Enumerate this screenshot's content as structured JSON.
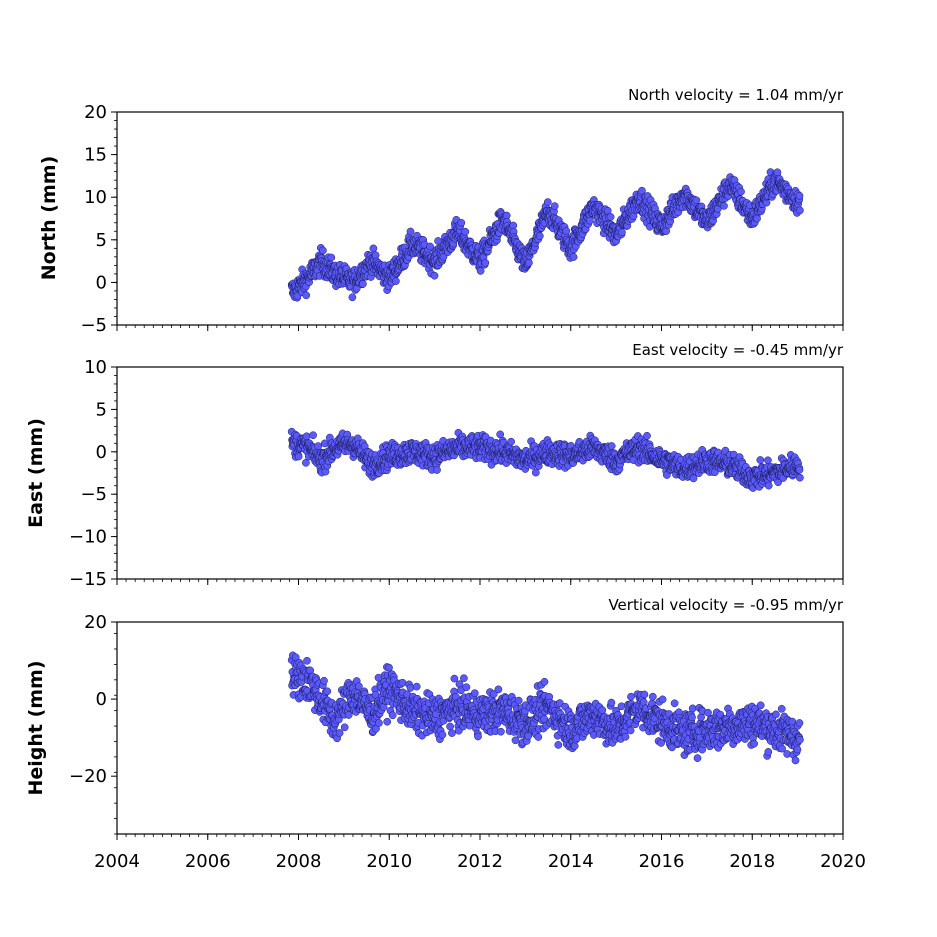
{
  "colors": {
    "marker_fill": "#5a5aff",
    "marker_edge": "#1a1a55",
    "axes": "#000000"
  },
  "shared_x": {
    "xlim": [
      2004,
      2020
    ],
    "ticks": [
      2004,
      2006,
      2008,
      2010,
      2012,
      2014,
      2016,
      2018,
      2020
    ],
    "minor_step": 0.2,
    "data_start": 2007.85,
    "data_end": 2019.05
  },
  "chart_data": [
    {
      "type": "scatter",
      "title": "North velocity = 1.04 mm/yr",
      "ylabel": "North (mm)",
      "ylim": [
        -5,
        20
      ],
      "yticks": [
        -5,
        0,
        5,
        10,
        15,
        20
      ],
      "grid": false,
      "series": [
        {
          "x": [
            2007.9,
            2008.2,
            2008.5,
            2008.8,
            2009.2,
            2009.6,
            2010.0,
            2010.5,
            2011.0,
            2011.5,
            2012.0,
            2012.5,
            2013.0,
            2013.5,
            2014.0,
            2014.5,
            2015.0,
            2015.5,
            2016.0,
            2016.5,
            2017.0,
            2017.5,
            2018.0,
            2018.5,
            2019.0
          ],
          "y": [
            -1.0,
            0.5,
            2.5,
            1.0,
            0.0,
            2.5,
            0.5,
            4.5,
            2.5,
            6.0,
            2.5,
            7.5,
            2.0,
            8.5,
            4.0,
            9.0,
            5.5,
            10.0,
            6.5,
            10.5,
            7.0,
            11.5,
            7.5,
            12.0,
            9.5
          ]
        }
      ]
    },
    {
      "type": "scatter",
      "title": "East velocity = -0.45 mm/yr",
      "ylabel": "East (mm)",
      "ylim": [
        -15,
        10
      ],
      "yticks": [
        -15,
        -10,
        -5,
        0,
        5,
        10
      ],
      "grid": false,
      "series": [
        {
          "x": [
            2007.9,
            2008.2,
            2008.5,
            2008.8,
            2009.2,
            2009.6,
            2010.0,
            2010.5,
            2011.0,
            2011.5,
            2012.0,
            2012.5,
            2013.0,
            2013.5,
            2014.0,
            2014.5,
            2015.0,
            2015.5,
            2016.0,
            2016.5,
            2017.0,
            2017.5,
            2018.0,
            2018.5,
            2019.0
          ],
          "y": [
            1.0,
            0.5,
            -1.0,
            0.5,
            1.0,
            -1.5,
            -0.5,
            0.0,
            -0.5,
            0.5,
            0.5,
            0.0,
            -1.0,
            0.0,
            -0.5,
            0.5,
            -1.0,
            0.5,
            -1.0,
            -2.0,
            -1.0,
            -1.5,
            -3.0,
            -2.5,
            -1.5
          ]
        }
      ]
    },
    {
      "type": "scatter",
      "title": "Vertical velocity = -0.95 mm/yr",
      "ylabel": "Height (mm)",
      "ylim": [
        -35,
        20
      ],
      "yticks": [
        -20,
        0,
        20
      ],
      "grid": false,
      "series": [
        {
          "x": [
            2007.9,
            2008.2,
            2008.5,
            2008.8,
            2009.2,
            2009.6,
            2010.0,
            2010.5,
            2011.0,
            2011.5,
            2012.0,
            2012.5,
            2013.0,
            2013.5,
            2014.0,
            2014.5,
            2015.0,
            2015.5,
            2016.0,
            2016.5,
            2017.0,
            2017.5,
            2018.0,
            2018.5,
            2019.0
          ],
          "y": [
            6.0,
            5.0,
            0.0,
            -6.0,
            2.0,
            -4.0,
            3.0,
            -3.0,
            -5.0,
            -2.0,
            -4.0,
            -3.0,
            -6.0,
            -2.0,
            -8.0,
            -4.0,
            -8.0,
            -2.0,
            -6.0,
            -9.0,
            -8.0,
            -7.0,
            -6.0,
            -8.0,
            -10.0
          ]
        }
      ]
    }
  ]
}
